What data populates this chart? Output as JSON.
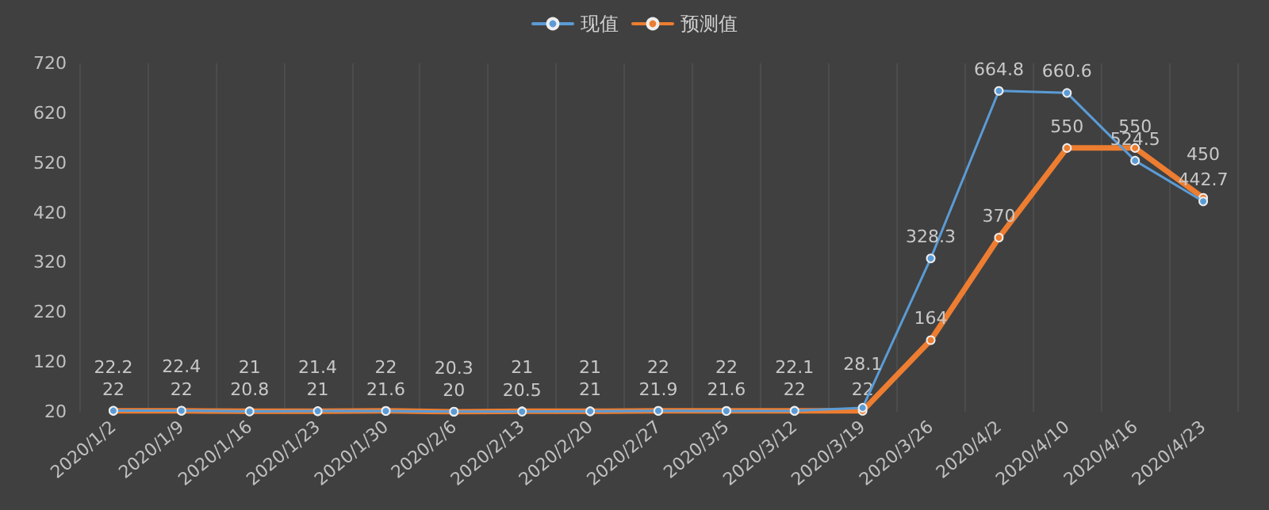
{
  "chart_data": {
    "type": "line",
    "categories": [
      "2020/1/2",
      "2020/1/9",
      "2020/1/16",
      "2020/1/23",
      "2020/1/30",
      "2020/2/6",
      "2020/2/13",
      "2020/2/20",
      "2020/2/27",
      "2020/3/5",
      "2020/3/12",
      "2020/3/19",
      "2020/3/26",
      "2020/4/2",
      "2020/4/10",
      "2020/4/16",
      "2020/4/23"
    ],
    "series": [
      {
        "name": "现值",
        "color": "#5b9bd5",
        "values": [
          22.2,
          22.4,
          20.8,
          21.4,
          21.6,
          20.3,
          20.5,
          21,
          21.9,
          21.6,
          22.1,
          28.1,
          328.3,
          664.8,
          660.6,
          524.5,
          442.7
        ]
      },
      {
        "name": "预测值",
        "color": "#ed7d31",
        "values": [
          22,
          22,
          21,
          21,
          22,
          20,
          21,
          21,
          22,
          22,
          22,
          22,
          164,
          370,
          550,
          550,
          450
        ]
      }
    ],
    "ylim": [
      20,
      720
    ],
    "yticks": [
      20,
      120,
      220,
      320,
      420,
      520,
      620,
      720
    ],
    "grid": "x",
    "legend": "top",
    "marker": "circle",
    "line_style": "solid",
    "data_labels": true
  }
}
